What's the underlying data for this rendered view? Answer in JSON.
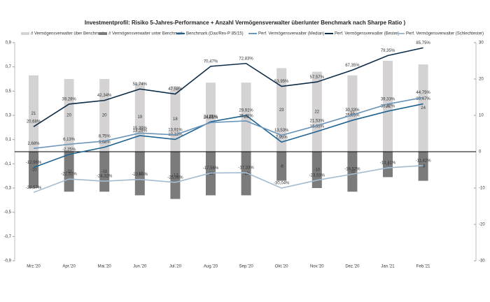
{
  "chart_data": {
    "type": "combo",
    "title": "Investmentprofil: Risiko 5-Jahres-Performance + Anzahl Vermögensverwalter über/unter Benchmark nach Sharpe Ratio )",
    "categories": [
      "Mrz.'20",
      "Apr.'20",
      "Mai.'20",
      "Jun.'20",
      "Jul.'20",
      "Aug.'20",
      "Sep.'20",
      "Okt.'20",
      "Nov.'20",
      "Dez.'20",
      "Jan.'21",
      "Feb.'21"
    ],
    "ylim": [
      -0.9,
      0.9
    ],
    "yticks": [
      {
        "value": 0.9,
        "label": "0,9"
      },
      {
        "value": 0.7,
        "label": "0,7"
      },
      {
        "value": 0.5,
        "label": "0,5"
      },
      {
        "value": 0.3,
        "label": "0,3"
      },
      {
        "value": 0.1,
        "label": "0,1"
      },
      {
        "value": -0.1,
        "label": "-0,1"
      },
      {
        "value": -0.3,
        "label": "-0,3"
      },
      {
        "value": -0.5,
        "label": "-0,5"
      },
      {
        "value": -0.7,
        "label": "-0,7"
      },
      {
        "value": -0.9,
        "label": "-0,9"
      }
    ],
    "y2lim": [
      -30,
      30
    ],
    "y2ticks": [
      30,
      20,
      10,
      0,
      -10,
      -20,
      -30
    ],
    "series": [
      {
        "name": "# Vermögensverwalter über Benchmark",
        "type": "bar",
        "axis": "y2",
        "color": "#d4d2d2",
        "values": [
          21,
          20,
          20,
          19,
          18,
          19,
          19,
          23,
          22,
          21,
          25,
          24
        ]
      },
      {
        "name": "# Vermögensverwalter unter Benchmark",
        "type": "bar",
        "axis": "y2",
        "color": "#7b7b7b",
        "values": [
          -10,
          -11,
          -11,
          -12,
          -13,
          -12,
          -12,
          -8,
          -10,
          -11,
          -7,
          -8
        ]
      },
      {
        "name": "Benchmark (Dax/Rex-P 85/15)",
        "type": "line",
        "color": "#1f6391",
        "values": [
          -0.1296,
          -0.0225,
          0.0368,
          0.1328,
          0.1013,
          0.2475,
          0.2991,
          0.0795,
          0.1665,
          0.2593,
          0.3342,
          0.3947
        ],
        "value_labels": [
          "-12,96%",
          "-2,25%",
          "3,68%",
          "13,28%",
          "10,13%",
          "24,75%",
          "29,91%",
          "7,95%",
          "16,65%",
          "25,93%",
          "33,42%",
          "39,47%"
        ]
      },
      {
        "name": "Perf. Vermögensverwalter (Median)",
        "type": "line",
        "color": "#6b95b8",
        "values": [
          0.0268,
          0.0613,
          0.0875,
          0.1539,
          0.1391,
          0.2405,
          0.2541,
          0.1353,
          0.2153,
          0.3033,
          0.3933,
          0.4475
        ],
        "value_labels": [
          "2,68%",
          "6,13%",
          "8,75%",
          "15,39%",
          "13,91%",
          "24,05%",
          "25,41%",
          "13,53%",
          "21,53%",
          "30,33%",
          "39,33%",
          "44,75%"
        ]
      },
      {
        "name": "Perf. Vermögensverwalter (Bester)",
        "type": "line",
        "color": "#0d2c48",
        "values": [
          0.2068,
          0.3928,
          0.4234,
          0.5174,
          0.4758,
          0.7047,
          0.7283,
          0.5395,
          0.5757,
          0.6735,
          0.7935,
          0.8575
        ],
        "value_labels": [
          "20,68%",
          "39,28%",
          "42,34%",
          "51,74%",
          "47,58%",
          "70,47%",
          "72,83%",
          "53,95%",
          "57,57%",
          "67,35%",
          "79,35%",
          "85,75%"
        ]
      },
      {
        "name": "Perf. Vermögensverwalter (Schlechtester)",
        "type": "line",
        "color": "#a3bbd0",
        "values": [
          -0.3357,
          -0.2252,
          -0.2432,
          -0.2283,
          -0.2536,
          -0.1756,
          -0.1733,
          -0.3004,
          -0.2353,
          -0.1852,
          -0.1331,
          -0.1142
        ],
        "value_labels": [
          "-33,57%",
          "-22,52%",
          "-24,32%",
          "-22,83%",
          "-25,36%",
          "-17,56%",
          "-17,33%",
          "-30,04%",
          "-23,53%",
          "-18,52%",
          "-13,31%",
          "-11,42%"
        ]
      }
    ]
  }
}
